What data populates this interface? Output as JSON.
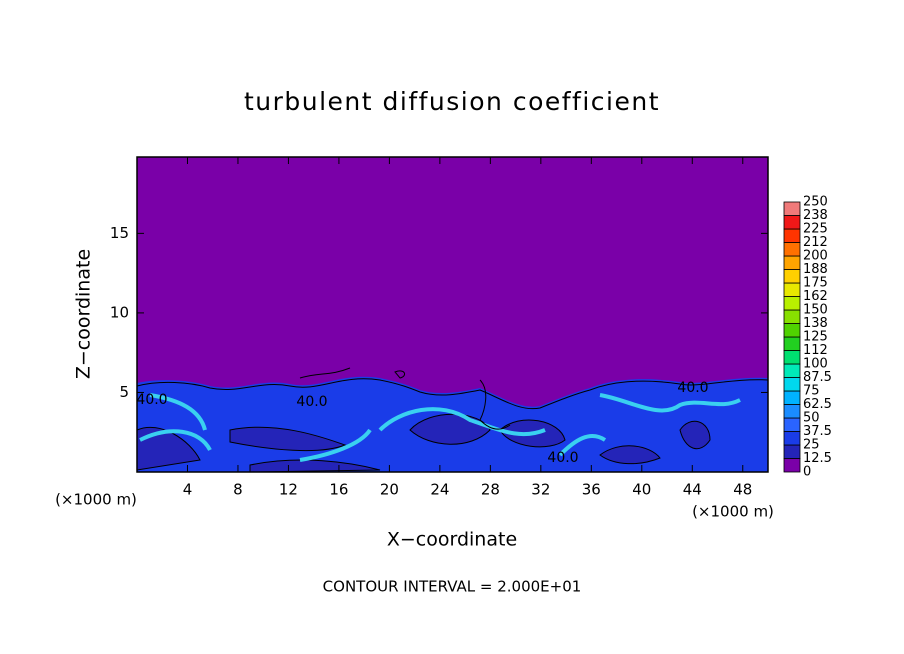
{
  "chart_data": {
    "type": "contour",
    "title": "turbulent diffusion coefficient",
    "x_label": "X−coordinate",
    "y_label": "Z−coordinate",
    "x_unit": "(×1000 m)",
    "y_unit": "(×1000 m)",
    "footnote": "CONTOUR INTERVAL = 2.000E+01",
    "xlim": [
      0,
      50
    ],
    "xticks": [
      4,
      8,
      12,
      16,
      20,
      24,
      28,
      32,
      36,
      40,
      44,
      48
    ],
    "ylim": [
      0,
      19.8
    ],
    "yticks": [
      5,
      10,
      15
    ],
    "contour_labels": [
      "40.0",
      "40.0",
      "40.0",
      "40.0"
    ],
    "colorbar": {
      "ticks": [
        0,
        12.5,
        25,
        37.5,
        50,
        62.5,
        75,
        87.5,
        100,
        {
          "value": 112.5,
          "label": "112"
        },
        125,
        {
          "value": 137.5,
          "label": "138"
        },
        150,
        {
          "value": 162.5,
          "label": "162"
        },
        175,
        {
          "value": 187.5,
          "label": "188"
        },
        200,
        {
          "value": 212.5,
          "label": "212"
        },
        225,
        {
          "value": 237.5,
          "label": "238"
        },
        250
      ],
      "colors": [
        "#7a00a8",
        "#2424b8",
        "#1a3ce8",
        "#2a64ff",
        "#1a8cff",
        "#00b2ff",
        "#00d8ee",
        "#00eab8",
        "#00e070",
        "#22d020",
        "#50d200",
        "#88e000",
        "#b8f000",
        "#e8e800",
        "#ffd000",
        "#ffa400",
        "#ff7000",
        "#ff3400",
        "#f01818",
        "#f07a7a"
      ]
    }
  }
}
